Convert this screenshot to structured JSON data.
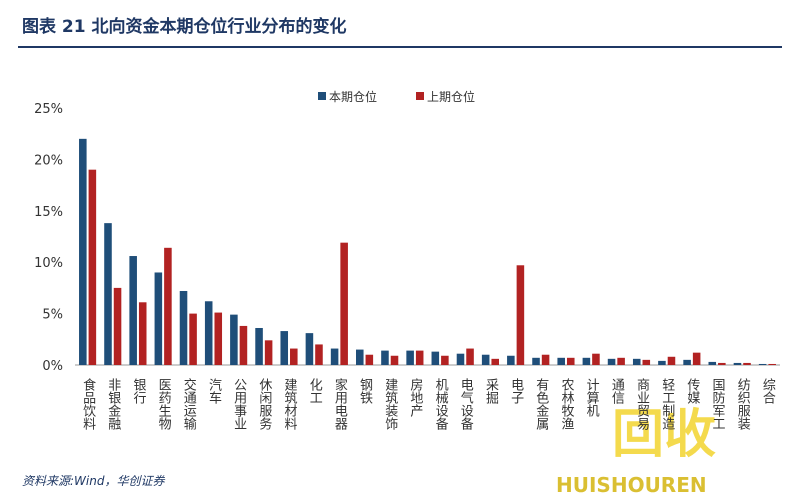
{
  "chart_data": {
    "type": "bar",
    "title": "图表 21    北向资金本期仓位行业分布的变化",
    "source": "资料来源:Wind，华创证券",
    "categories": [
      "食品饮料",
      "非银金融",
      "银行",
      "医药生物",
      "交通运输",
      "汽车",
      "公用事业",
      "休闲服务",
      "建筑材料",
      "化工",
      "家用电器",
      "钢铁",
      "建筑装饰",
      "房地产",
      "机械设备",
      "电气设备",
      "采掘",
      "电子",
      "有色金属",
      "农林牧渔",
      "计算机",
      "通信",
      "商业贸易",
      "轻工制造",
      "传媒",
      "国防军工",
      "纺织服装",
      "综合"
    ],
    "series": [
      {
        "name": "本期仓位",
        "color": "#1f4e79",
        "values": [
          22,
          13.8,
          10.6,
          9,
          7.2,
          6.2,
          4.9,
          3.6,
          3.3,
          3.1,
          1.6,
          1.5,
          1.4,
          1.4,
          1.3,
          1.1,
          1.0,
          0.9,
          0.7,
          0.7,
          0.7,
          0.6,
          0.6,
          0.4,
          0.5,
          0.3,
          0.2,
          0.1
        ]
      },
      {
        "name": "上期仓位",
        "color": "#b22222",
        "values": [
          19,
          7.5,
          6.1,
          11.4,
          5,
          5.1,
          3.8,
          2.4,
          1.6,
          2.0,
          11.9,
          1.0,
          0.9,
          1.4,
          0.9,
          1.6,
          0.6,
          9.7,
          1.0,
          0.7,
          1.1,
          0.7,
          0.5,
          0.8,
          1.2,
          0.2,
          0.2,
          0.1
        ]
      }
    ],
    "ylim": [
      0,
      25
    ],
    "yticks": [
      {
        "value": 0,
        "label": "0%"
      },
      {
        "value": 5,
        "label": "5%"
      },
      {
        "value": 10,
        "label": "10%"
      },
      {
        "value": 15,
        "label": "15%"
      },
      {
        "value": 20,
        "label": "20%"
      },
      {
        "value": 25,
        "label": "25%"
      }
    ],
    "grid": false,
    "legend": "top"
  },
  "watermark": {
    "text": "回收",
    "subtext": "HUISHOUREN"
  }
}
